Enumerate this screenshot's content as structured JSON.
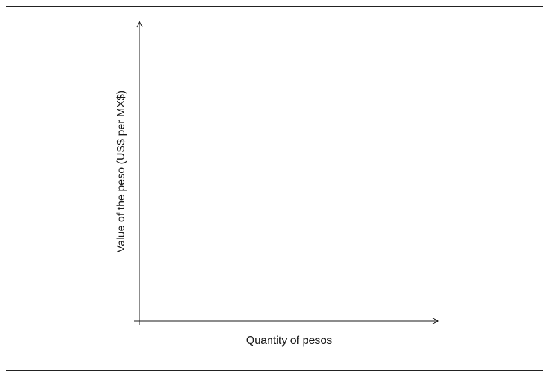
{
  "chart_data": {
    "type": "line",
    "title": "",
    "xlabel": "Quantity of pesos",
    "ylabel": "Value of the peso (US$ per MX$)",
    "series": [],
    "grid": false,
    "legend": "none"
  }
}
